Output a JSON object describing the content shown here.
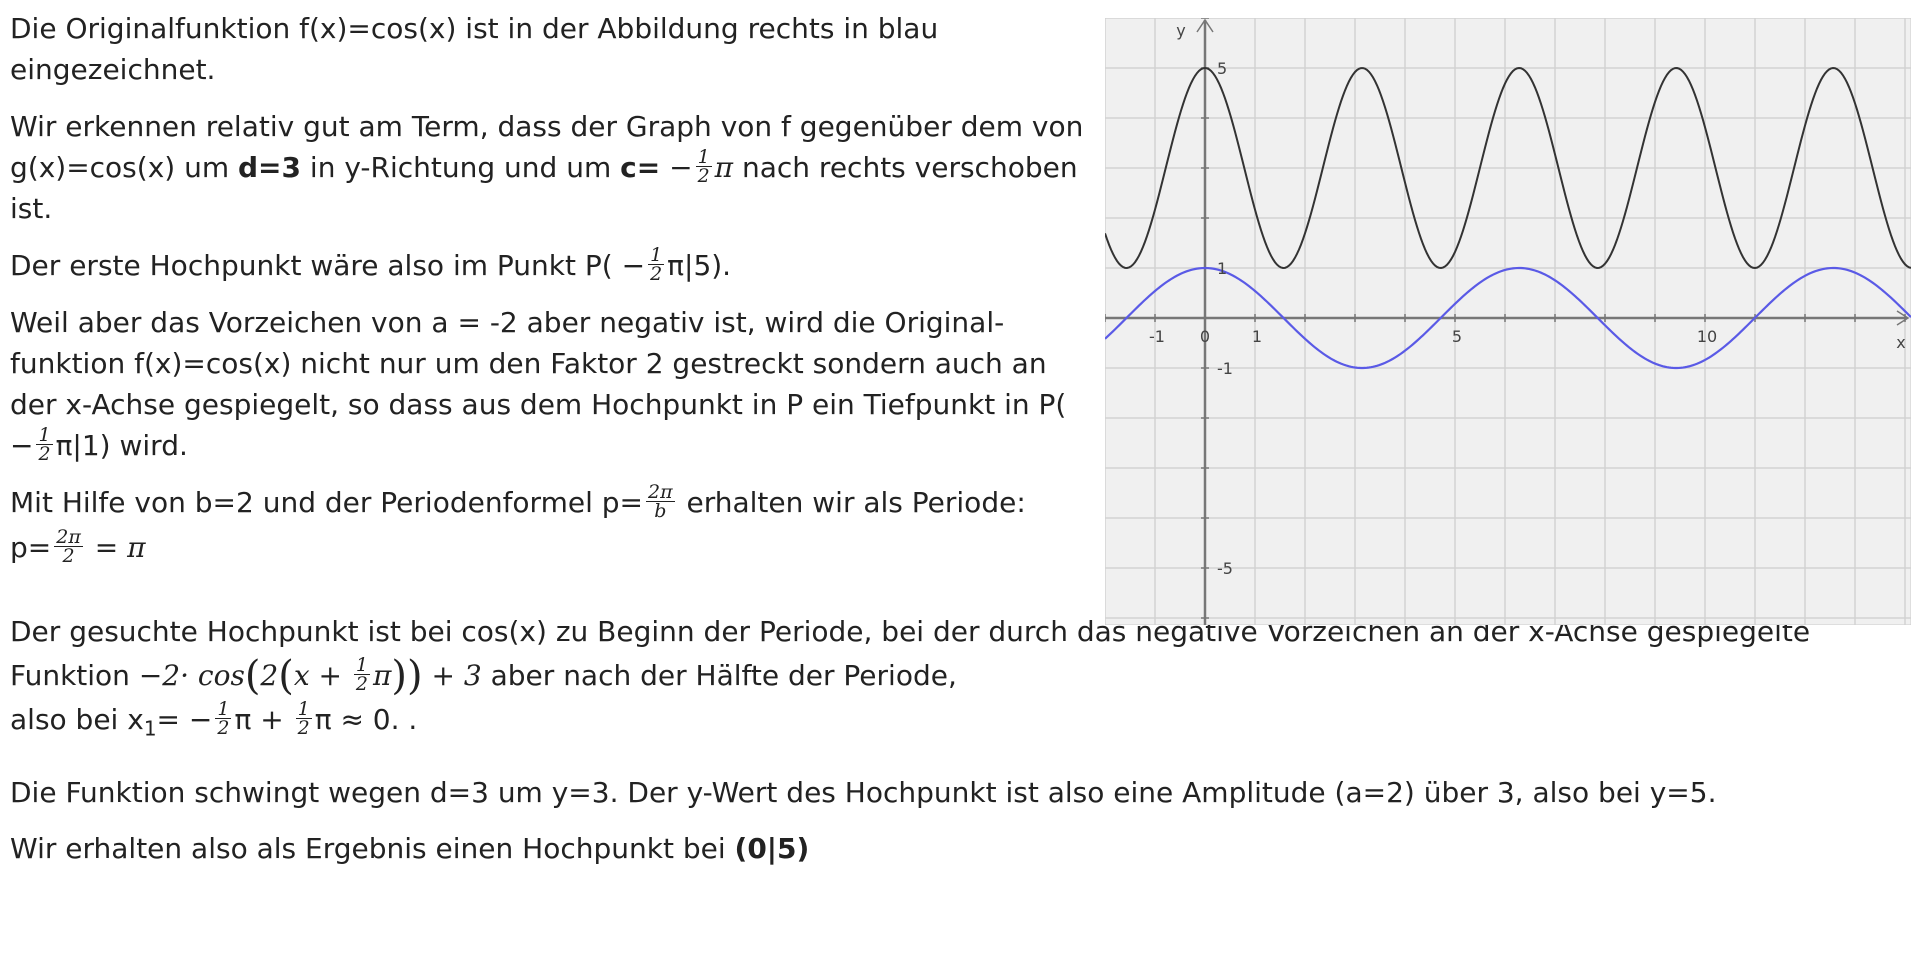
{
  "p1": "Die Originalfunktion f(x)=cos(x) ist in der Abbildung rechts in blau eingezeichnet.",
  "p2": {
    "a": "Wir erkennen relativ gut am Term, dass der Graph von f gegenüber dem von g(x)=cos(x) um ",
    "d_bold": "d=3",
    "b": " in y-Richtung und um ",
    "c_bold": "c=",
    "c_math": " −",
    "frac_num": "1",
    "frac_den": "2",
    "pi": "π",
    "c": " nach rechts verschoben ist."
  },
  "p3": {
    "a": "Der erste Hochpunkt wäre also im Punkt P( −",
    "frac_num": "1",
    "frac_den": "2",
    "b": "π|5)."
  },
  "p4": {
    "a": "Weil aber das Vorzeichen von a = -2 aber negativ ist, wird die Original-funktion f(x)=cos(x) nicht nur um den Faktor 2 gestreckt sondern auch an der x-Achse gespiegelt, so dass aus dem Hochpunkt in P ein Tiefpunkt in P( −",
    "frac_num": "1",
    "frac_den": "2",
    "b": "π|1) wird."
  },
  "p5": {
    "a": "Mit Hilfe von b=2 und der Periodenformel p=",
    "frac_num": "2π",
    "frac_den": "b",
    "b": " erhalten wir als Periode:"
  },
  "p6": {
    "a": "p=",
    "frac_num": "2π",
    "frac_den": "2",
    "b": " = ",
    "pi": "π"
  },
  "p7": {
    "a": "Der gesuchte Hochpunkt ist bei cos(x) zu Beginn der Periode, bei der durch das negative Vorzeichen an der x-Achse gespiegelte Funktion ",
    "m1": "−2· cos",
    "paren_open": "(",
    "m2": "2",
    "m3": "x + ",
    "frac_num": "1",
    "frac_den": "2",
    "m4": "π",
    "paren_close": ")",
    "m5": " + 3",
    "b": " aber nach der Hälfte der Periode,"
  },
  "p8": {
    "a": "also bei x",
    "sub": "1",
    "b": "= −",
    "frac1_num": "1",
    "frac1_den": "2",
    "c": "π + ",
    "frac2_num": "1",
    "frac2_den": "2",
    "d": "π ≈ 0. ."
  },
  "p9": "Die Funktion schwingt wegen d=3 um y=3. Der y-Wert des Hochpunkt ist also eine Amplitude (a=2) über 3, also bei y=5.",
  "p10": {
    "a": "Wir erhalten also als Ergebnis einen Hochpunkt bei ",
    "bold": "(0|5)"
  },
  "graph": {
    "x_axis_label": "x",
    "y_axis_label": "y",
    "x_ticks": [
      "-1",
      "0",
      "1",
      "5",
      "10"
    ],
    "y_ticks": [
      "5",
      "1",
      "-1",
      "-5"
    ],
    "blue_color": "#5a5ae6",
    "black_color": "#333333",
    "grid_color": "#d2d2d2",
    "background": "#f0f0f0",
    "x_range": [
      -2,
      14
    ],
    "y_range": [
      -6,
      6
    ]
  }
}
